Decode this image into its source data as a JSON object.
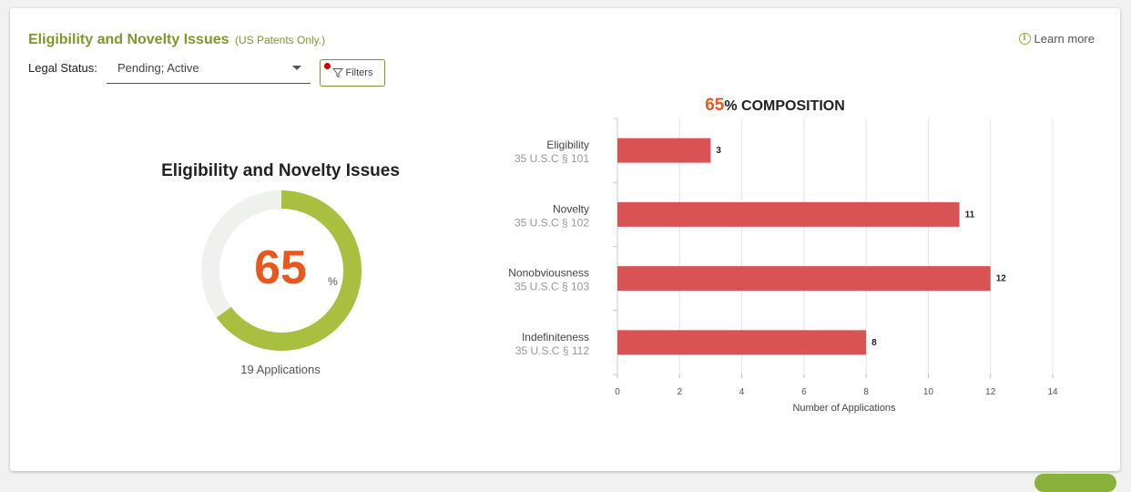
{
  "header": {
    "title": "Eligibility and Novelty Issues",
    "subtitle": "(US Patents Only.)",
    "learn_more": "Learn more",
    "info_icon": "i"
  },
  "filters": {
    "legal_status_label": "Legal Status:",
    "legal_status_value": "Pending; Active",
    "filters_button": "Filters"
  },
  "donut": {
    "title": "Eligibility and Novelty Issues",
    "value": "65",
    "unit": "%",
    "fraction": 0.65,
    "caption": "19 Applications"
  },
  "colors": {
    "accent_green": "#7c9a2a",
    "donut_fill": "#a9bf3f",
    "donut_track": "#eff1ee",
    "highlight_orange": "#e8581c",
    "bar_red": "#d95254",
    "filter_badge": "#cc0000"
  },
  "icons": {
    "info": "info-circle-icon",
    "filter": "funnel-icon",
    "dropdown": "caret-down-icon"
  },
  "chart_data": {
    "type": "bar",
    "orientation": "horizontal",
    "title_highlight": "65",
    "title_rest": "% COMPOSITION",
    "categories": [
      "Eligibility",
      "Novelty",
      "Nonobviousness",
      "Indefiniteness"
    ],
    "subcategories": [
      "35 U.S.C § 101",
      "35 U.S.C § 102",
      "35 U.S.C § 103",
      "35 U.S.C § 112"
    ],
    "values": [
      3,
      11,
      12,
      8
    ],
    "xlabel": "Number of Applications",
    "xlim": [
      0,
      14
    ],
    "xticks": [
      "0",
      "2",
      "4",
      "6",
      "8",
      "10",
      "12",
      "14"
    ],
    "grid": true
  }
}
